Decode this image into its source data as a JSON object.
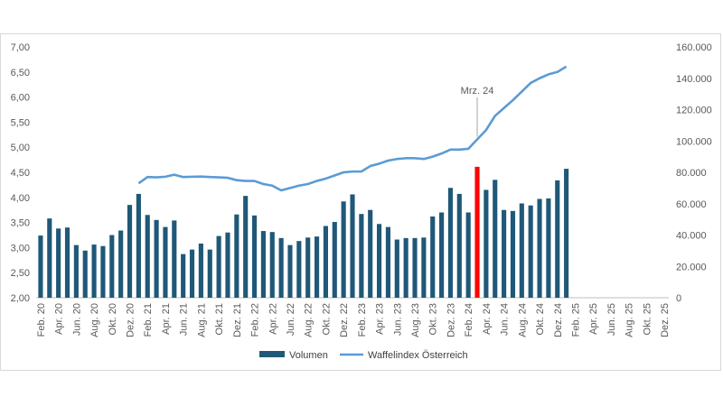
{
  "chart_data": {
    "type": "bar",
    "categories": [
      "Feb. 20",
      "Mrz. 20",
      "Apr. 20",
      "Mai. 20",
      "Jun. 20",
      "Jul. 20",
      "Aug. 20",
      "Sep. 20",
      "Okt. 20",
      "Nov. 20",
      "Dez. 20",
      "Jan. 21",
      "Feb. 21",
      "Mrz. 21",
      "Apr. 21",
      "Mai. 21",
      "Jun. 21",
      "Jul. 21",
      "Aug. 21",
      "Sep. 21",
      "Okt. 21",
      "Nov. 21",
      "Dez. 21",
      "Jan. 22",
      "Feb. 22",
      "Mrz. 22",
      "Apr. 22",
      "Mai. 22",
      "Jun. 22",
      "Jul. 22",
      "Aug. 22",
      "Sep. 22",
      "Okt. 22",
      "Nov. 22",
      "Dez. 22",
      "Jan. 23",
      "Feb. 23",
      "Mrz. 23",
      "Apr. 23",
      "Mai. 23",
      "Jun. 23",
      "Jul. 23",
      "Aug. 23",
      "Sep. 23",
      "Okt. 23",
      "Nov. 23",
      "Dez. 23",
      "Jan. 24",
      "Feb. 24",
      "Mrz. 24",
      "Apr. 24",
      "Mai. 24",
      "Jun. 24",
      "Jul. 24",
      "Aug. 24",
      "Sep. 24",
      "Okt. 24",
      "Nov. 24",
      "Dez. 24",
      "Jan. 25",
      "Feb. 25",
      "Mrz. 25",
      "Apr. 25",
      "Mai. 25",
      "Jun. 25",
      "Jul. 25",
      "Aug. 25",
      "Sep. 25",
      "Okt. 25",
      "Nov. 25",
      "Dez. 25"
    ],
    "x_tick_labels": [
      "Feb. 20",
      "Apr. 20",
      "Jun. 20",
      "Aug. 20",
      "Okt. 20",
      "Dez. 20",
      "Feb. 21",
      "Apr. 21",
      "Jun. 21",
      "Aug. 21",
      "Okt. 21",
      "Dez. 21",
      "Feb. 22",
      "Apr. 22",
      "Jun. 22",
      "Aug. 22",
      "Okt. 22",
      "Dez. 22",
      "Feb. 23",
      "Apr. 23",
      "Jun. 23",
      "Aug. 23",
      "Okt. 23",
      "Dez. 23",
      "Feb. 24",
      "Apr. 24",
      "Jun. 24",
      "Aug. 24",
      "Okt. 24",
      "Dez. 24",
      "Feb. 25",
      "Apr. 25",
      "Jun. 25",
      "Aug. 25",
      "Okt. 25",
      "Dez. 25"
    ],
    "series": [
      {
        "name": "Volumen",
        "axis": "left",
        "type": "bar",
        "color": "#1f5878",
        "highlight_color": "#ff0000",
        "highlight_index": 49,
        "values": [
          3.24,
          3.58,
          3.38,
          3.4,
          3.05,
          2.94,
          3.06,
          3.03,
          3.25,
          3.34,
          3.85,
          4.07,
          3.65,
          3.55,
          3.41,
          3.54,
          2.87,
          2.96,
          3.08,
          2.96,
          3.23,
          3.3,
          3.66,
          4.03,
          3.64,
          3.33,
          3.31,
          3.19,
          3.05,
          3.13,
          3.2,
          3.22,
          3.43,
          3.51,
          3.92,
          4.06,
          3.67,
          3.75,
          3.47,
          3.41,
          3.16,
          3.19,
          3.19,
          3.2,
          3.62,
          3.7,
          4.19,
          4.07,
          3.7,
          4.61,
          4.15,
          4.35,
          3.75,
          3.73,
          3.88,
          3.84,
          3.97,
          3.98,
          4.34,
          4.57,
          null,
          null,
          null,
          null,
          null,
          null,
          null,
          null,
          null,
          null,
          null
        ]
      },
      {
        "name": "Waffelindex Österreich",
        "axis": "right",
        "type": "line",
        "color": "#5b9bd5",
        "values": [
          null,
          null,
          null,
          null,
          null,
          null,
          null,
          null,
          null,
          null,
          null,
          73000,
          77000,
          76800,
          77200,
          78500,
          77000,
          77200,
          77300,
          77000,
          76800,
          76500,
          75000,
          74500,
          74500,
          72500,
          71500,
          68500,
          70000,
          71500,
          72500,
          74500,
          76000,
          78000,
          80000,
          80500,
          80500,
          84000,
          85500,
          87500,
          88500,
          89000,
          89000,
          88500,
          90000,
          92000,
          94500,
          94500,
          95000,
          101000,
          107000,
          116000,
          121000,
          126000,
          131500,
          137000,
          140000,
          142500,
          144000,
          147500,
          null,
          null,
          null,
          null,
          null,
          null,
          null,
          null,
          null,
          null,
          null
        ]
      }
    ],
    "y_left": {
      "ylim": [
        2.0,
        7.0
      ],
      "ticks": [
        "2,00",
        "2,50",
        "3,00",
        "3,50",
        "4,00",
        "4,50",
        "5,00",
        "5,50",
        "6,00",
        "6,50",
        "7,00"
      ]
    },
    "y_right": {
      "ylim": [
        0,
        160000
      ],
      "ticks": [
        "0",
        "20.000",
        "40.000",
        "60.000",
        "80.000",
        "100.000",
        "120.000",
        "140.000",
        "160.000"
      ]
    },
    "annotations": [
      {
        "text": "Mrz. 24",
        "category_index": 49
      }
    ],
    "legend": {
      "position": "bottom",
      "entries": [
        "Volumen",
        "Waffelindex Österreich"
      ]
    },
    "grid": false
  }
}
